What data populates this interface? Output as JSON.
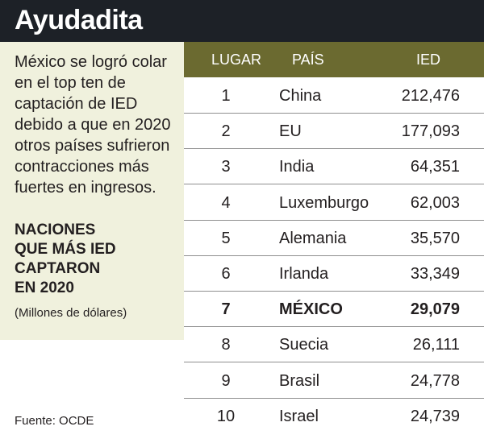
{
  "header": {
    "title": "Ayudadita"
  },
  "side": {
    "intro": "México se logró colar en el top ten de captación de IED debido a que en 2020 otros países sufrieron contracciones más fuertes en ingresos.",
    "subtitle_lines": [
      "NACIONES",
      "QUE MÁS IED",
      "CAPTARON",
      "EN 2020"
    ],
    "units": "(Millones de dólares)",
    "source": "Fuente: OCDE"
  },
  "table": {
    "headers": {
      "rank": "LUGAR",
      "country": "PAÍS",
      "value": "IED"
    }
  },
  "chart_data": {
    "type": "table",
    "title": "NACIONES QUE MÁS IED CAPTARON EN 2020",
    "unit": "(Millones de dólares)",
    "columns": [
      "LUGAR",
      "PAÍS",
      "IED"
    ],
    "highlight_country": "MÉXICO",
    "rows": [
      {
        "rank": "1",
        "country": "China",
        "value": "212,476"
      },
      {
        "rank": "2",
        "country": "EU",
        "value": "177,093"
      },
      {
        "rank": "3",
        "country": "India",
        "value": "64,351"
      },
      {
        "rank": "4",
        "country": "Luxemburgo",
        "value": "62,003"
      },
      {
        "rank": "5",
        "country": "Alemania",
        "value": "35,570"
      },
      {
        "rank": "6",
        "country": "Irlanda",
        "value": "33,349"
      },
      {
        "rank": "7",
        "country": "MÉXICO",
        "value": "29,079"
      },
      {
        "rank": "8",
        "country": "Suecia",
        "value": "26,111"
      },
      {
        "rank": "9",
        "country": "Brasil",
        "value": "24,778"
      },
      {
        "rank": "10",
        "country": "Israel",
        "value": "24,739"
      }
    ]
  }
}
